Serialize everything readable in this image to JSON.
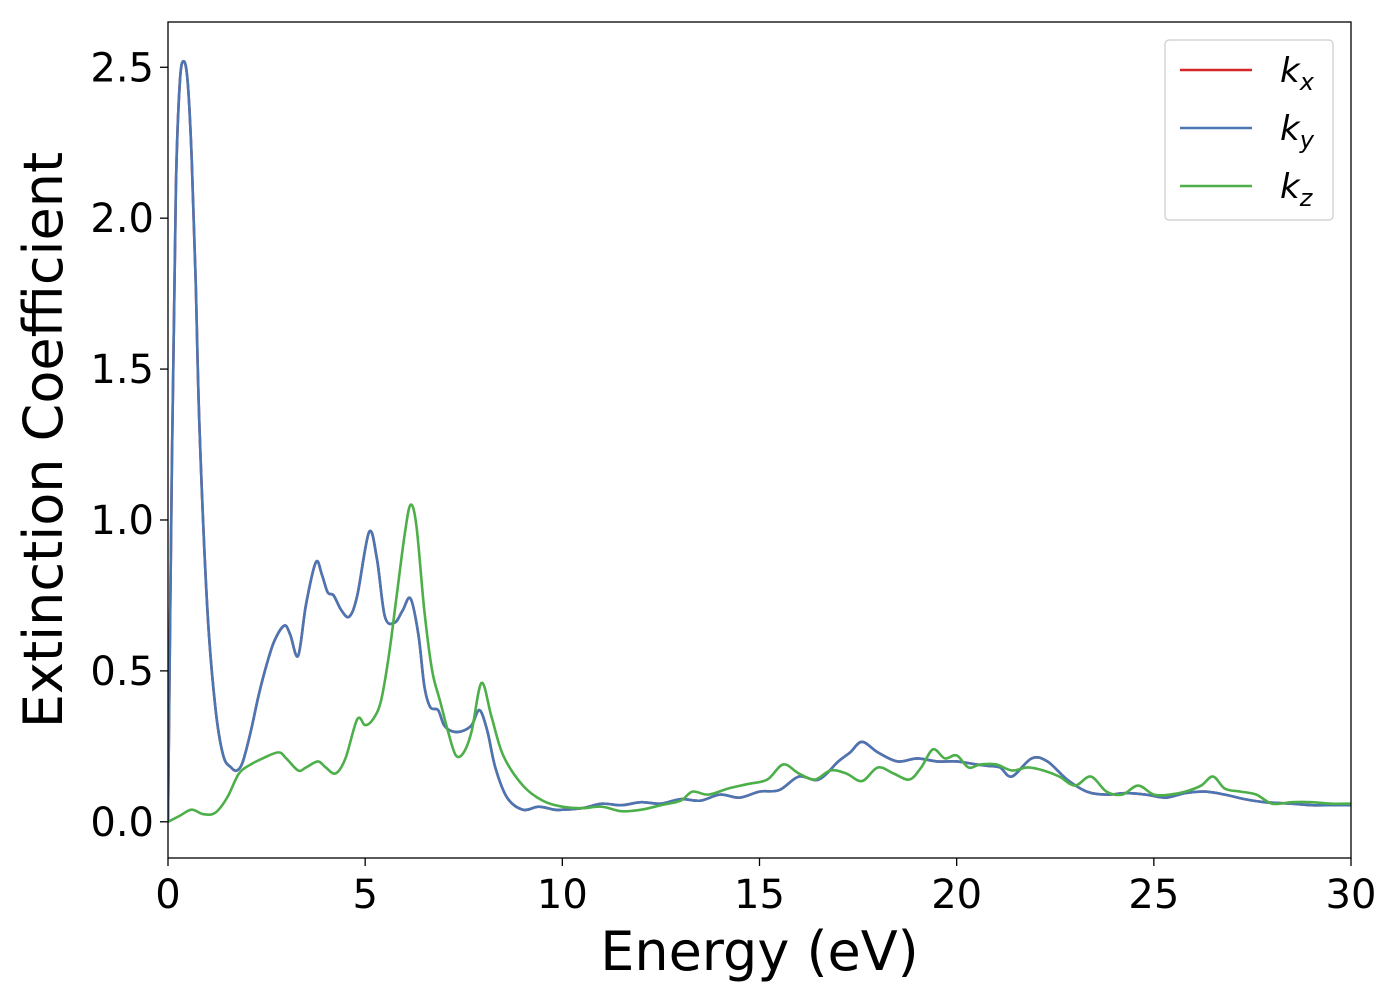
{
  "chart_data": {
    "type": "line",
    "title": "",
    "xlabel": "Energy (eV)",
    "ylabel": "Extinction Coefficient",
    "xlim": [
      0,
      30
    ],
    "ylim": [
      -0.12,
      2.65
    ],
    "xticks": [
      0,
      5,
      10,
      15,
      20,
      25,
      30
    ],
    "xtick_labels": [
      "0",
      "5",
      "10",
      "15",
      "20",
      "25",
      "30"
    ],
    "yticks": [
      0.0,
      0.5,
      1.0,
      1.5,
      2.0,
      2.5
    ],
    "ytick_labels": [
      "0.0",
      "0.5",
      "1.0",
      "1.5",
      "2.0",
      "2.5"
    ],
    "grid": false,
    "legend_position": "top-right",
    "series": [
      {
        "name": "k_x",
        "label_base": "k",
        "label_sub": "x",
        "color": "#d62728",
        "x": [
          0,
          0.1,
          0.2,
          0.3,
          0.4,
          0.5,
          0.6,
          0.7,
          0.8,
          1.0,
          1.2,
          1.4,
          1.6,
          1.75,
          1.9,
          2.1,
          2.3,
          2.5,
          2.7,
          2.95,
          3.1,
          3.3,
          3.5,
          3.75,
          3.9,
          4.05,
          4.2,
          4.4,
          4.6,
          4.8,
          5.1,
          5.3,
          5.5,
          5.75,
          5.95,
          6.15,
          6.35,
          6.5,
          6.65,
          6.85,
          7.0,
          7.2,
          7.45,
          7.7,
          7.9,
          8.1,
          8.3,
          8.6,
          9.0,
          9.4,
          9.8,
          10.0,
          10.5,
          11.0,
          11.5,
          12.0,
          12.5,
          13.0,
          13.5,
          14.0,
          14.5,
          15.0,
          15.5,
          16.0,
          16.5,
          17.0,
          17.3,
          17.6,
          18.0,
          18.5,
          19.0,
          19.5,
          20.0,
          20.5,
          20.8,
          21.1,
          21.4,
          21.9,
          22.3,
          22.8,
          23.3,
          23.8,
          24.3,
          24.8,
          25.3,
          25.8,
          26.3,
          26.8,
          27.3,
          27.8,
          28.5,
          29.0,
          29.5,
          30.0
        ],
        "y": [
          0.0,
          1.2,
          2.1,
          2.45,
          2.52,
          2.45,
          2.2,
          1.8,
          1.3,
          0.7,
          0.38,
          0.22,
          0.18,
          0.17,
          0.2,
          0.3,
          0.42,
          0.52,
          0.6,
          0.65,
          0.62,
          0.55,
          0.72,
          0.86,
          0.82,
          0.76,
          0.75,
          0.7,
          0.68,
          0.75,
          0.96,
          0.87,
          0.68,
          0.66,
          0.7,
          0.74,
          0.62,
          0.45,
          0.38,
          0.37,
          0.32,
          0.3,
          0.3,
          0.32,
          0.37,
          0.3,
          0.18,
          0.08,
          0.04,
          0.05,
          0.04,
          0.04,
          0.045,
          0.06,
          0.055,
          0.065,
          0.06,
          0.075,
          0.07,
          0.09,
          0.08,
          0.1,
          0.105,
          0.15,
          0.14,
          0.2,
          0.23,
          0.265,
          0.23,
          0.2,
          0.21,
          0.2,
          0.2,
          0.19,
          0.185,
          0.18,
          0.15,
          0.21,
          0.2,
          0.14,
          0.1,
          0.09,
          0.095,
          0.09,
          0.08,
          0.095,
          0.1,
          0.09,
          0.075,
          0.065,
          0.06,
          0.055,
          0.055,
          0.055
        ]
      },
      {
        "name": "k_y",
        "label_base": "k",
        "label_sub": "y",
        "color": "#4a77b4",
        "x": [
          0,
          0.1,
          0.2,
          0.3,
          0.4,
          0.5,
          0.6,
          0.7,
          0.8,
          1.0,
          1.2,
          1.4,
          1.6,
          1.75,
          1.9,
          2.1,
          2.3,
          2.5,
          2.7,
          2.95,
          3.1,
          3.3,
          3.5,
          3.75,
          3.9,
          4.05,
          4.2,
          4.4,
          4.6,
          4.8,
          5.1,
          5.3,
          5.5,
          5.75,
          5.95,
          6.15,
          6.35,
          6.5,
          6.65,
          6.85,
          7.0,
          7.2,
          7.45,
          7.7,
          7.9,
          8.1,
          8.3,
          8.6,
          9.0,
          9.4,
          9.8,
          10.0,
          10.5,
          11.0,
          11.5,
          12.0,
          12.5,
          13.0,
          13.5,
          14.0,
          14.5,
          15.0,
          15.5,
          16.0,
          16.5,
          17.0,
          17.3,
          17.6,
          18.0,
          18.5,
          19.0,
          19.5,
          20.0,
          20.5,
          20.8,
          21.1,
          21.4,
          21.9,
          22.3,
          22.8,
          23.3,
          23.8,
          24.3,
          24.8,
          25.3,
          25.8,
          26.3,
          26.8,
          27.3,
          27.8,
          28.5,
          29.0,
          29.5,
          30.0
        ],
        "y": [
          0.0,
          1.2,
          2.1,
          2.45,
          2.52,
          2.45,
          2.2,
          1.8,
          1.3,
          0.7,
          0.38,
          0.22,
          0.18,
          0.17,
          0.2,
          0.3,
          0.42,
          0.52,
          0.6,
          0.65,
          0.62,
          0.55,
          0.72,
          0.86,
          0.82,
          0.76,
          0.75,
          0.7,
          0.68,
          0.75,
          0.96,
          0.87,
          0.68,
          0.66,
          0.7,
          0.74,
          0.62,
          0.45,
          0.38,
          0.37,
          0.32,
          0.3,
          0.3,
          0.32,
          0.37,
          0.3,
          0.18,
          0.08,
          0.04,
          0.05,
          0.04,
          0.04,
          0.045,
          0.06,
          0.055,
          0.065,
          0.06,
          0.075,
          0.07,
          0.09,
          0.08,
          0.1,
          0.105,
          0.15,
          0.14,
          0.2,
          0.23,
          0.265,
          0.23,
          0.2,
          0.21,
          0.2,
          0.2,
          0.19,
          0.185,
          0.18,
          0.15,
          0.21,
          0.2,
          0.14,
          0.1,
          0.09,
          0.095,
          0.09,
          0.08,
          0.095,
          0.1,
          0.09,
          0.075,
          0.065,
          0.06,
          0.055,
          0.055,
          0.055
        ]
      },
      {
        "name": "k_z",
        "label_base": "k",
        "label_sub": "z",
        "color": "#4daf4a",
        "x": [
          0,
          0.3,
          0.6,
          0.9,
          1.2,
          1.5,
          1.8,
          2.1,
          2.4,
          2.8,
          3.0,
          3.3,
          3.5,
          3.8,
          4.0,
          4.25,
          4.5,
          4.8,
          5.0,
          5.2,
          5.4,
          5.6,
          5.8,
          6.0,
          6.15,
          6.3,
          6.5,
          6.7,
          6.9,
          7.1,
          7.3,
          7.5,
          7.7,
          7.95,
          8.2,
          8.5,
          9.0,
          9.5,
          10.0,
          10.5,
          11.0,
          11.5,
          12.0,
          12.5,
          13.0,
          13.3,
          13.7,
          14.2,
          14.7,
          15.2,
          15.6,
          16.0,
          16.4,
          16.8,
          17.2,
          17.6,
          18.0,
          18.4,
          18.8,
          19.1,
          19.4,
          19.7,
          20.0,
          20.3,
          20.6,
          21.0,
          21.4,
          21.8,
          22.2,
          22.6,
          23.0,
          23.4,
          23.8,
          24.2,
          24.6,
          25.0,
          25.4,
          25.8,
          26.2,
          26.5,
          26.8,
          27.2,
          27.6,
          28.0,
          28.5,
          29.0,
          29.5,
          30.0
        ],
        "y": [
          0.0,
          0.02,
          0.04,
          0.025,
          0.03,
          0.08,
          0.16,
          0.19,
          0.21,
          0.23,
          0.21,
          0.17,
          0.18,
          0.2,
          0.18,
          0.16,
          0.21,
          0.34,
          0.32,
          0.34,
          0.4,
          0.55,
          0.75,
          0.95,
          1.05,
          0.98,
          0.7,
          0.5,
          0.4,
          0.3,
          0.22,
          0.23,
          0.3,
          0.46,
          0.35,
          0.22,
          0.12,
          0.07,
          0.05,
          0.045,
          0.05,
          0.035,
          0.04,
          0.055,
          0.07,
          0.1,
          0.09,
          0.11,
          0.125,
          0.14,
          0.19,
          0.16,
          0.14,
          0.17,
          0.16,
          0.135,
          0.18,
          0.16,
          0.14,
          0.18,
          0.24,
          0.21,
          0.22,
          0.18,
          0.19,
          0.19,
          0.17,
          0.18,
          0.17,
          0.15,
          0.12,
          0.15,
          0.1,
          0.09,
          0.12,
          0.09,
          0.09,
          0.1,
          0.12,
          0.15,
          0.11,
          0.1,
          0.09,
          0.06,
          0.065,
          0.065,
          0.06,
          0.06
        ]
      }
    ]
  }
}
